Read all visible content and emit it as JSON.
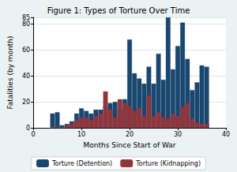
{
  "chart_data": {
    "type": "bar",
    "title": "Figure 1: Types of Torture Over Time",
    "x_label": "Months Since Start of War",
    "y_label": "Fatalities (by month)",
    "x": [
      4,
      5,
      6,
      7,
      8,
      9,
      10,
      11,
      12,
      13,
      14,
      15,
      16,
      17,
      18,
      19,
      20,
      21,
      22,
      23,
      24,
      25,
      26,
      27,
      28,
      29,
      30,
      31,
      32,
      33,
      34,
      35,
      36
    ],
    "series": [
      {
        "name": "Torture (Detention)",
        "color": "#1a476f",
        "values": [
          11,
          12,
          2,
          3,
          5,
          11,
          15,
          13,
          11,
          14,
          14,
          17,
          19,
          20,
          14,
          22,
          68,
          42,
          38,
          34,
          47,
          34,
          57,
          37,
          85,
          45,
          63,
          81,
          53,
          29,
          35,
          48,
          47
        ]
      },
      {
        "name": "Torture (Kidnapping)",
        "color": "#90353b",
        "values": [
          0,
          1,
          0,
          2,
          3,
          6,
          8,
          8,
          6,
          9,
          11,
          28,
          14,
          8,
          22,
          19,
          17,
          13,
          15,
          9,
          25,
          9,
          12,
          8,
          7,
          11,
          9,
          16,
          19,
          7,
          4,
          3,
          3
        ]
      }
    ],
    "xlim": [
      0,
      40
    ],
    "xticks": [
      0,
      10,
      20,
      30,
      40
    ],
    "ylim": [
      0,
      85
    ],
    "yticks": [
      0,
      20,
      40,
      60,
      80
    ],
    "grid": true,
    "legend": "bottom",
    "stacked": false
  }
}
